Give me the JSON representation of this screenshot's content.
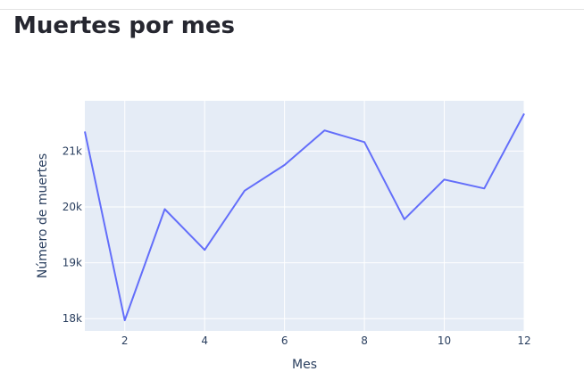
{
  "page": {
    "title": "Muertes por mes"
  },
  "chart_data": {
    "type": "line",
    "title": "",
    "xlabel": "Mes",
    "ylabel": "Número de muertes",
    "x": [
      1,
      2,
      3,
      4,
      5,
      6,
      7,
      8,
      9,
      10,
      11,
      12
    ],
    "series": [
      {
        "values": [
          21350,
          17970,
          19960,
          19230,
          20290,
          20750,
          21370,
          21160,
          19780,
          20490,
          20330,
          21670
        ]
      }
    ],
    "xlim": [
      1,
      12
    ],
    "ylim": [
      17780,
      21900
    ],
    "xticks": [
      2,
      4,
      6,
      8,
      10,
      12
    ],
    "yticks": [
      18000,
      19000,
      20000,
      21000
    ],
    "ytick_labels": [
      "18k",
      "19k",
      "20k",
      "21k"
    ],
    "grid": true,
    "colors": {
      "line": "#636efa",
      "plot_background": "#e5ecf6",
      "grid": "#ffffff",
      "text": "#2a3f5f"
    }
  }
}
